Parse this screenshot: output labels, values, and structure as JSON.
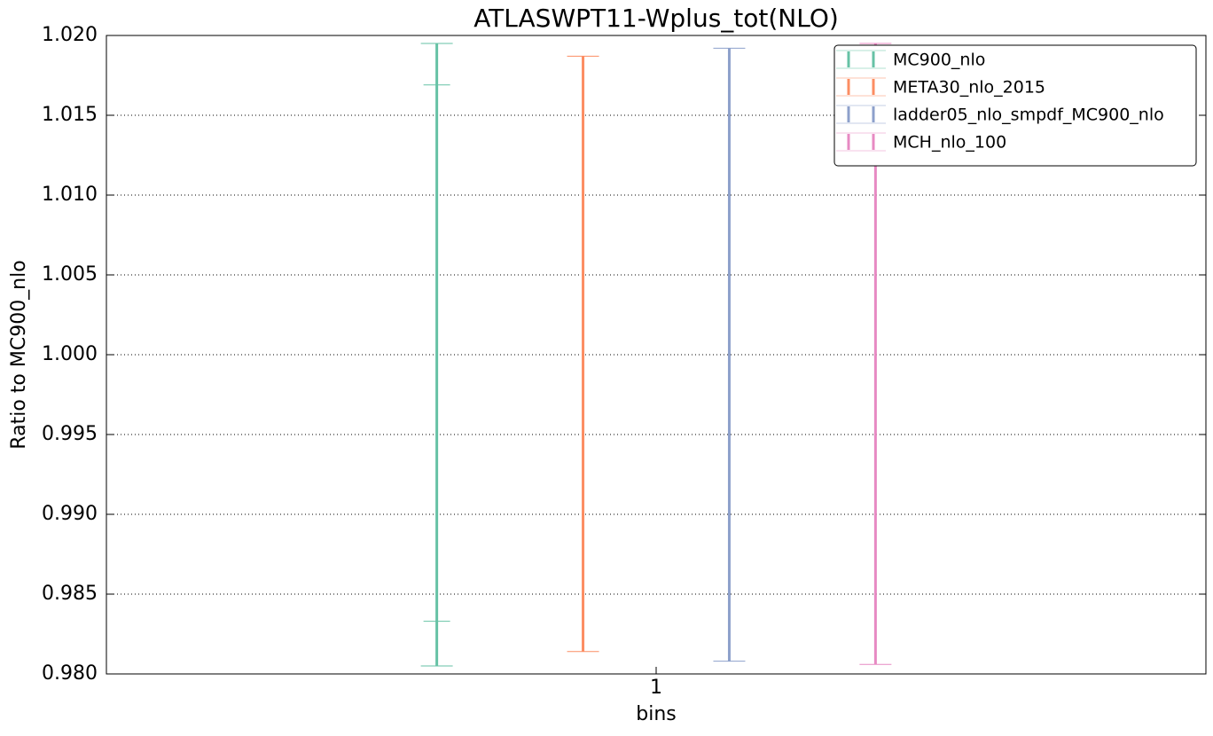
{
  "chart_data": {
    "type": "errorbar",
    "title": "ATLASWPT11-Wplus_tot(NLO)",
    "x_label": "bins",
    "y_label": "Ratio to MC900_nlo",
    "categories": [
      "1"
    ],
    "ylim": [
      0.98,
      1.02
    ],
    "yticks": [
      {
        "value": 0.98,
        "label": "0.980"
      },
      {
        "value": 0.985,
        "label": "0.985"
      },
      {
        "value": 0.99,
        "label": "0.990"
      },
      {
        "value": 0.995,
        "label": "0.995"
      },
      {
        "value": 1.0,
        "label": "1.000"
      },
      {
        "value": 1.005,
        "label": "1.005"
      },
      {
        "value": 1.01,
        "label": "1.010"
      },
      {
        "value": 1.015,
        "label": "1.015"
      },
      {
        "value": 1.02,
        "label": "1.020"
      }
    ],
    "grid": true,
    "legend": "upper right",
    "series": [
      {
        "name": "MC900_nlo",
        "color": "#66c2a5",
        "lower": [
          0.9805
        ],
        "upper": [
          1.0195
        ],
        "inner_lower": [
          0.9833
        ],
        "inner_upper": [
          1.0169
        ]
      },
      {
        "name": "META30_nlo_2015",
        "color": "#fc8d62",
        "lower": [
          0.9814
        ],
        "upper": [
          1.0187
        ]
      },
      {
        "name": "ladder05_nlo_smpdf_MC900_nlo",
        "color": "#8da0cb",
        "lower": [
          0.9808
        ],
        "upper": [
          1.0192
        ]
      },
      {
        "name": "MCH_nlo_100",
        "color": "#e78ac3",
        "lower": [
          0.9806
        ],
        "upper": [
          1.0195
        ]
      }
    ]
  }
}
